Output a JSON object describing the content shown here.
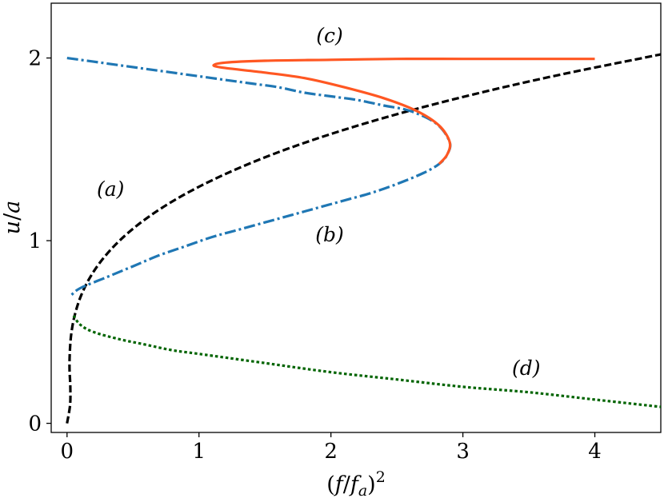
{
  "chart_data": {
    "type": "line",
    "title": "",
    "xlabel": "(f/fa)²",
    "ylabel": "u/a",
    "xlim": [
      -0.12,
      4.5
    ],
    "ylim": [
      -0.05,
      2.3
    ],
    "grid": false,
    "legend": "none",
    "xticks": [
      {
        "value": 0,
        "label": "0"
      },
      {
        "value": 1,
        "label": "1"
      },
      {
        "value": 2,
        "label": "2"
      },
      {
        "value": 3,
        "label": "3"
      },
      {
        "value": 4,
        "label": "4"
      }
    ],
    "yticks": [
      {
        "value": 0,
        "label": "0"
      },
      {
        "value": 1,
        "label": "1"
      },
      {
        "value": 2,
        "label": "2"
      }
    ],
    "annotations": [
      {
        "text": "(a)",
        "x": 0.33,
        "y": 1.28
      },
      {
        "text": "(b)",
        "x": 1.99,
        "y": 1.03
      },
      {
        "text": "(c)",
        "x": 1.99,
        "y": 2.12
      },
      {
        "text": "(d)",
        "x": 3.48,
        "y": 0.3
      }
    ],
    "series": [
      {
        "id": "a",
        "color": "#000000",
        "style": "dashed",
        "x": [
          0.0,
          0.023,
          0.025,
          0.019,
          0.022,
          0.034,
          0.061,
          0.107,
          0.175,
          0.271,
          0.398,
          0.561,
          0.764,
          1.013,
          1.31,
          1.661,
          2.069,
          2.539,
          3.075,
          3.681,
          4.362,
          4.5
        ],
        "y": [
          0.0,
          0.1,
          0.2,
          0.3,
          0.4,
          0.5,
          0.6,
          0.7,
          0.8,
          0.9,
          1.0,
          1.1,
          1.2,
          1.3,
          1.4,
          1.5,
          1.6,
          1.7,
          1.8,
          1.9,
          2.0,
          2.02
        ]
      },
      {
        "id": "b",
        "color": "#1f77b4",
        "style": "dashdot",
        "x": [
          0.0,
          0.2,
          0.4,
          0.6,
          0.8,
          1.0,
          1.2,
          1.4,
          1.6,
          1.8,
          2.0,
          2.2,
          2.4,
          2.6,
          2.8,
          2.9,
          2.88,
          2.82,
          2.7,
          2.5,
          2.3,
          2.1,
          1.9,
          1.7,
          1.5,
          1.3,
          1.1,
          0.9,
          0.7,
          0.5,
          0.3,
          0.1,
          0.03
        ],
        "y": [
          2.0,
          1.98,
          1.96,
          1.94,
          1.92,
          1.9,
          1.88,
          1.86,
          1.84,
          1.81,
          1.79,
          1.77,
          1.74,
          1.71,
          1.64,
          1.54,
          1.47,
          1.42,
          1.37,
          1.31,
          1.26,
          1.22,
          1.18,
          1.14,
          1.1,
          1.06,
          1.02,
          0.97,
          0.92,
          0.86,
          0.8,
          0.74,
          0.7
        ]
      },
      {
        "id": "c",
        "color": "#ff5722",
        "style": "solid",
        "x": [
          4.0,
          3.5,
          3.0,
          2.5,
          2.0,
          1.5,
          1.2,
          1.11,
          1.2,
          1.5,
          1.8,
          2.1,
          2.4,
          2.65,
          2.82,
          2.9,
          2.88,
          2.82
        ],
        "y": [
          1.995,
          1.995,
          1.995,
          1.995,
          1.99,
          1.985,
          1.975,
          1.96,
          1.945,
          1.92,
          1.89,
          1.84,
          1.78,
          1.71,
          1.63,
          1.54,
          1.47,
          1.42
        ]
      },
      {
        "id": "d",
        "color": "#006400",
        "style": "dotted",
        "x": [
          0.05,
          0.1,
          0.2,
          0.4,
          0.6,
          0.8,
          1.0,
          1.5,
          2.0,
          2.5,
          3.0,
          3.5,
          4.0,
          4.5
        ],
        "y": [
          0.59,
          0.54,
          0.5,
          0.46,
          0.43,
          0.4,
          0.38,
          0.33,
          0.28,
          0.24,
          0.2,
          0.17,
          0.13,
          0.09
        ]
      }
    ]
  }
}
